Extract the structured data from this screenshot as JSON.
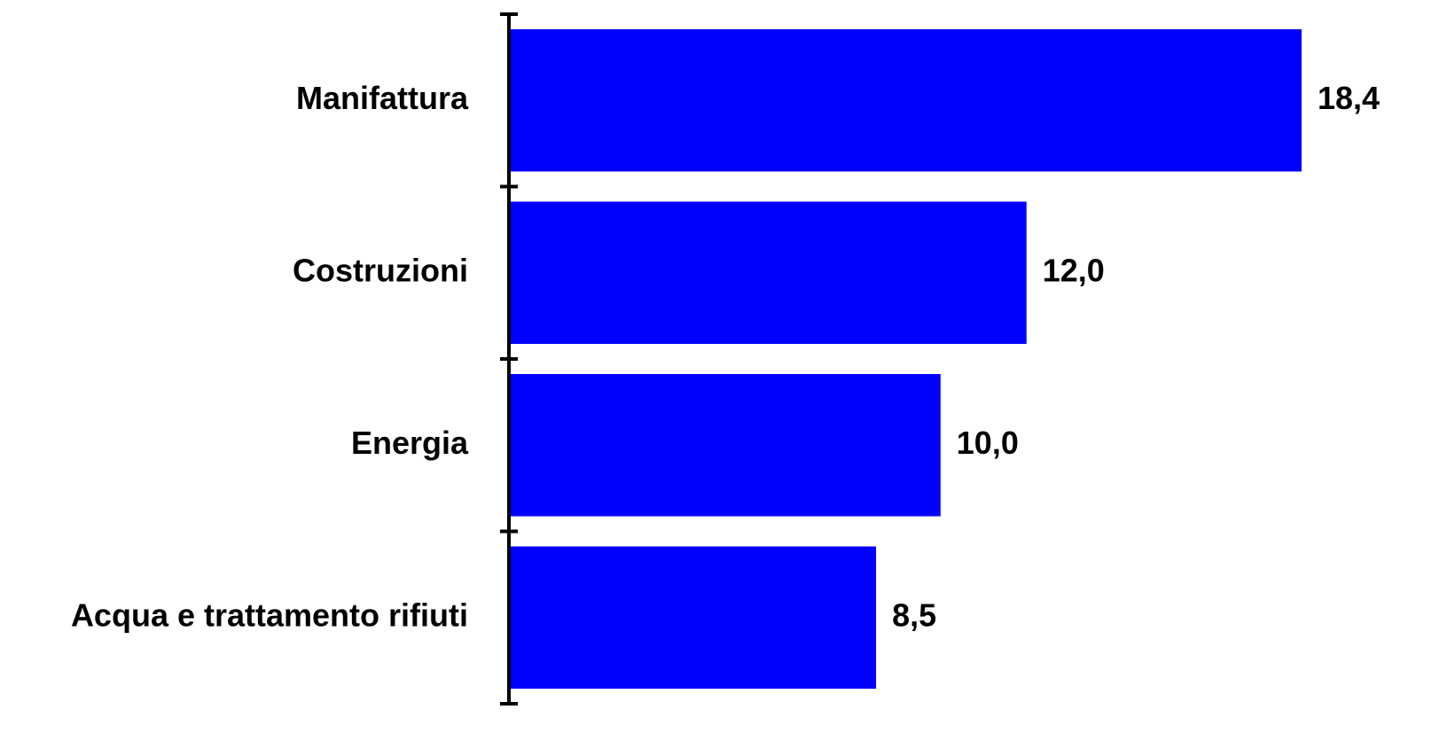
{
  "chart_data": {
    "type": "bar",
    "orientation": "horizontal",
    "categories": [
      "Manifattura",
      "Costruzioni",
      "Energia",
      "Acqua e trattamento rifiuti"
    ],
    "values": [
      18.4,
      12.0,
      10.0,
      8.5
    ],
    "value_labels": [
      "18,4",
      "12,0",
      "10,0",
      "8,5"
    ],
    "xlim": [
      0,
      18.4
    ],
    "title": "",
    "xlabel": "",
    "ylabel": "",
    "grid": false,
    "legend": "none",
    "bar_color": "#0000ff",
    "axis_color": "#000000"
  }
}
